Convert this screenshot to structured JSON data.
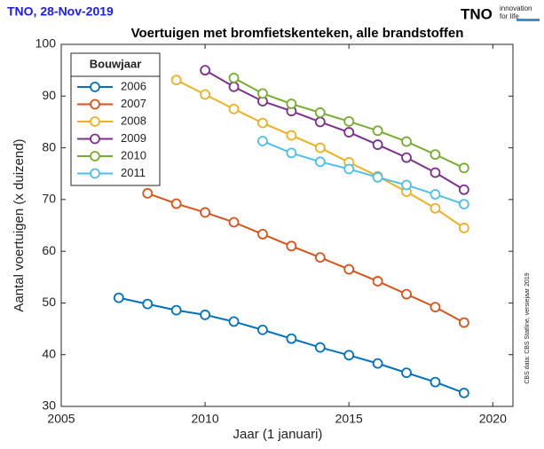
{
  "header": "TNO,  28-Nov-2019",
  "logo": {
    "name": "TNO",
    "tagline": [
      "innovation",
      "for life"
    ]
  },
  "source": "CBS data: CBS Statline, versiejaar 2019",
  "chart_data": {
    "type": "line",
    "title": "Voertuigen met bromfietskenteken, alle brandstoffen",
    "x_label": "Jaar (1 januari)",
    "y_label": "Aantal voertuigen (x duizend)",
    "legend_title": "Bouwjaar",
    "legend": "upper left",
    "grid": false,
    "xlim": [
      2005,
      2020.7
    ],
    "xticks": [
      2005,
      2010,
      2015,
      2020
    ],
    "ylim": [
      30,
      100
    ],
    "yticks": [
      30,
      40,
      50,
      60,
      70,
      80,
      90,
      100
    ],
    "series": [
      {
        "name": "2006",
        "color": "#0072bd",
        "x": [
          2007,
          2008,
          2009,
          2010,
          2011,
          2012,
          2013,
          2014,
          2015,
          2016,
          2017,
          2018,
          2019
        ],
        "values": [
          51.0,
          49.8,
          48.6,
          47.7,
          46.4,
          44.8,
          43.1,
          41.4,
          39.9,
          38.3,
          36.5,
          34.7,
          32.6
        ]
      },
      {
        "name": "2007",
        "color": "#d95319",
        "x": [
          2008,
          2009,
          2010,
          2011,
          2012,
          2013,
          2014,
          2015,
          2016,
          2017,
          2018,
          2019
        ],
        "values": [
          71.2,
          69.2,
          67.5,
          65.6,
          63.3,
          61.0,
          58.8,
          56.5,
          54.2,
          51.7,
          49.2,
          46.2
        ]
      },
      {
        "name": "2008",
        "color": "#edb120",
        "x": [
          2009,
          2010,
          2011,
          2012,
          2013,
          2014,
          2015,
          2016,
          2017,
          2018,
          2019
        ],
        "values": [
          93.1,
          90.3,
          87.5,
          84.8,
          82.4,
          80.0,
          77.2,
          74.5,
          71.5,
          68.3,
          64.5
        ]
      },
      {
        "name": "2009",
        "color": "#7e2f8e",
        "x": [
          2010,
          2011,
          2012,
          2013,
          2014,
          2015,
          2016,
          2017,
          2018,
          2019
        ],
        "values": [
          95.0,
          91.8,
          89.0,
          87.1,
          85.0,
          83.0,
          80.6,
          78.1,
          75.2,
          71.9
        ]
      },
      {
        "name": "2010",
        "color": "#77ac30",
        "x": [
          2011,
          2012,
          2013,
          2014,
          2015,
          2016,
          2017,
          2018,
          2019
        ],
        "values": [
          93.5,
          90.5,
          88.5,
          86.8,
          85.1,
          83.3,
          81.2,
          78.7,
          76.1
        ]
      },
      {
        "name": "2011",
        "color": "#4dbeee",
        "x": [
          2012,
          2013,
          2014,
          2015,
          2016,
          2017,
          2018,
          2019
        ],
        "values": [
          81.3,
          79.0,
          77.3,
          75.9,
          74.3,
          72.8,
          71.0,
          69.1
        ]
      }
    ]
  }
}
